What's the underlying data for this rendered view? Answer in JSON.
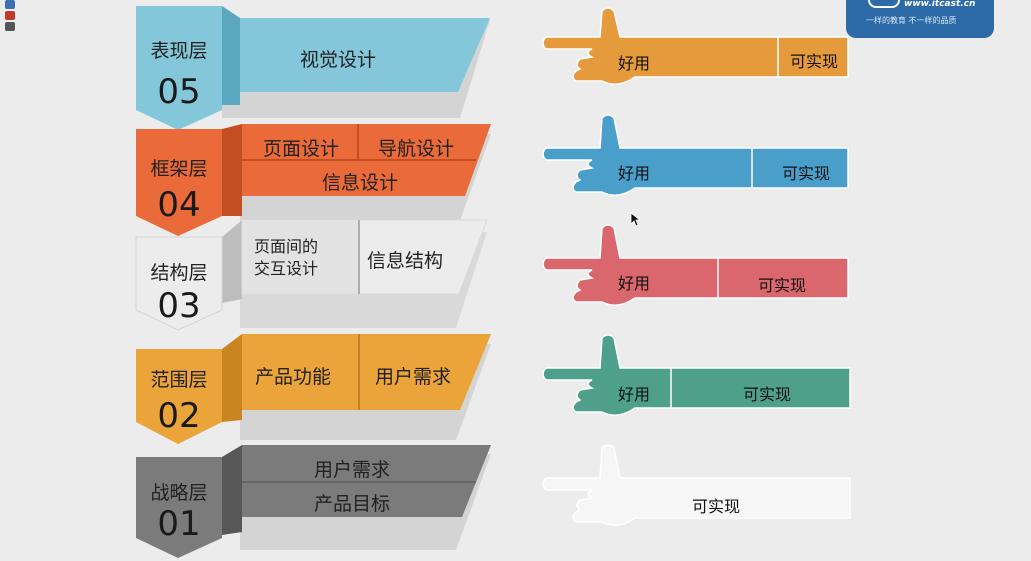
{
  "colors": {
    "layer5": "#84c7da",
    "layer5_dark": "#5aa7bf",
    "layer4": "#ea6a3a",
    "layer4_dark": "#c24e22",
    "layer3": "#ececec",
    "layer3_dark": "#bdbdbd",
    "layer2": "#eaa43a",
    "layer2_dark": "#c98620",
    "layer1": "#7b7b7b",
    "layer1_dark": "#575757",
    "hand5": "#e59a3c",
    "hand4": "#4a9fca",
    "hand3": "#d9676d",
    "hand2": "#4fa08a",
    "hand1": "#f6f6f6"
  },
  "logo": {
    "url": "www.itcast.cn",
    "slogan": "一样的教育 不一样的品质"
  },
  "layers": [
    {
      "name": "表现层",
      "number": "05",
      "cells": [
        "视觉设计"
      ]
    },
    {
      "name": "框架层",
      "number": "04",
      "cells": [
        "页面设计",
        "导航设计",
        "信息设计"
      ]
    },
    {
      "name": "结构层",
      "number": "03",
      "cells": [
        "页面间的",
        "交互设计",
        "信息结构"
      ]
    },
    {
      "name": "范围层",
      "number": "02",
      "cells": [
        "产品功能",
        "用户需求"
      ]
    },
    {
      "name": "战略层",
      "number": "01",
      "cells": [
        "用户需求",
        "产品目标"
      ]
    }
  ],
  "hands": [
    {
      "left": "好用",
      "right": "可实现"
    },
    {
      "left": "好用",
      "right": "可实现"
    },
    {
      "left": "好用",
      "right": "可实现"
    },
    {
      "left": "好用",
      "right": "可实现"
    },
    {
      "left": "",
      "right": "可实现"
    }
  ]
}
